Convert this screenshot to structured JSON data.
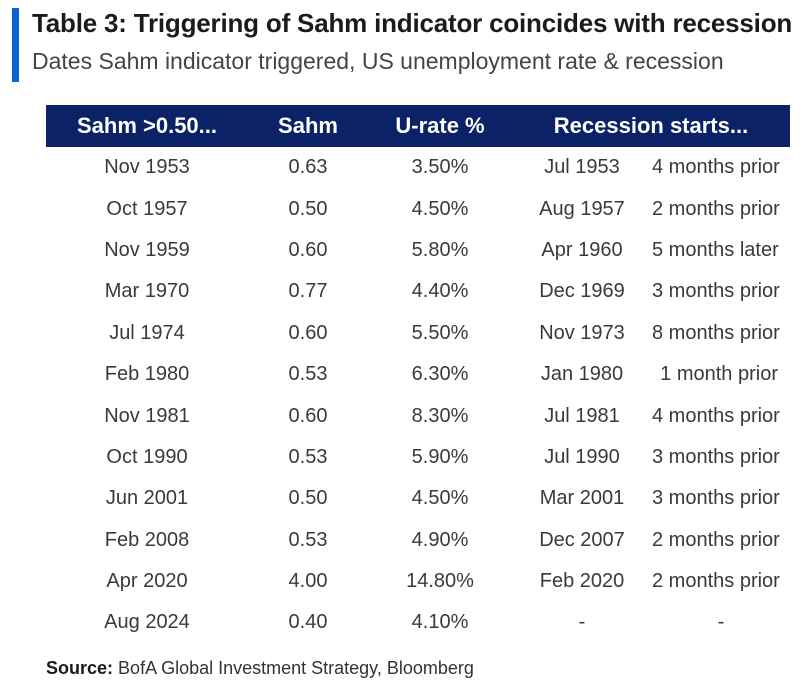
{
  "header": {
    "title": "Table 3: Triggering of Sahm indicator coincides with recession",
    "subtitle": "Dates Sahm indicator triggered, US unemployment rate & recession"
  },
  "table": {
    "columns": [
      "Sahm >0.50...",
      "Sahm",
      "U-rate %",
      "Recession starts..."
    ],
    "rows": [
      {
        "trigger": "Nov 1953",
        "sahm": "0.63",
        "urate": "3.50%",
        "recession": "Jul 1953",
        "timing": "4 months prior"
      },
      {
        "trigger": "Oct 1957",
        "sahm": "0.50",
        "urate": "4.50%",
        "recession": "Aug 1957",
        "timing": "2 months prior"
      },
      {
        "trigger": "Nov 1959",
        "sahm": "0.60",
        "urate": "5.80%",
        "recession": "Apr 1960",
        "timing": "5 months later"
      },
      {
        "trigger": "Mar 1970",
        "sahm": "0.77",
        "urate": "4.40%",
        "recession": "Dec 1969",
        "timing": "3 months prior"
      },
      {
        "trigger": "Jul 1974",
        "sahm": "0.60",
        "urate": "5.50%",
        "recession": "Nov 1973",
        "timing": "8 months prior"
      },
      {
        "trigger": "Feb 1980",
        "sahm": "0.53",
        "urate": "6.30%",
        "recession": "Jan 1980",
        "timing": "1 month prior"
      },
      {
        "trigger": "Nov 1981",
        "sahm": "0.60",
        "urate": "8.30%",
        "recession": "Jul 1981",
        "timing": "4 months prior"
      },
      {
        "trigger": "Oct 1990",
        "sahm": "0.53",
        "urate": "5.90%",
        "recession": "Jul 1990",
        "timing": "3 months prior"
      },
      {
        "trigger": "Jun 2001",
        "sahm": "0.50",
        "urate": "4.50%",
        "recession": "Mar 2001",
        "timing": "3 months prior"
      },
      {
        "trigger": "Feb 2008",
        "sahm": "0.53",
        "urate": "4.90%",
        "recession": "Dec 2007",
        "timing": "2 months prior"
      },
      {
        "trigger": "Apr 2020",
        "sahm": "4.00",
        "urate": "14.80%",
        "recession": "Feb 2020",
        "timing": "2 months prior"
      },
      {
        "trigger": "Aug 2024",
        "sahm": "0.40",
        "urate": "4.10%",
        "recession": "-",
        "timing": "-"
      }
    ]
  },
  "footer": {
    "source_label": "Source:",
    "source_text": "BofA Global Investment Strategy, Bloomberg"
  },
  "colors": {
    "accent_bar": "#0b63d6",
    "header_bg": "#0c2266",
    "header_text": "#ffffff"
  }
}
